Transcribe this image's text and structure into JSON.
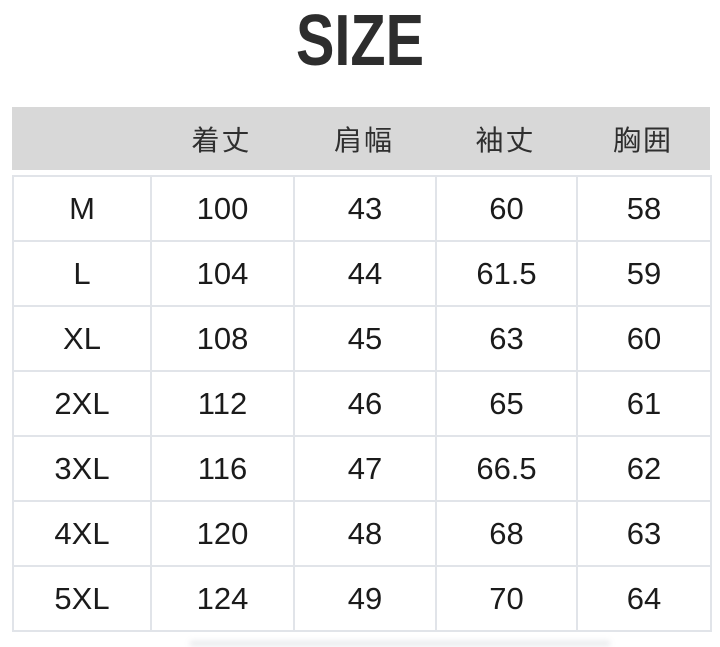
{
  "page": {
    "title": "SIZE"
  },
  "colors": {
    "header_background": "#d8d8d8",
    "cell_border": "#e1e4e9",
    "title_text": "#2d2d2d",
    "body_text": "#1b1b1b",
    "page_background": "#ffffff"
  },
  "chart_data": {
    "type": "table",
    "title": "SIZE",
    "row_header_label": "",
    "columns": [
      "着丈",
      "肩幅",
      "袖丈",
      "胸囲"
    ],
    "rows": [
      {
        "size": "M",
        "values": [
          100,
          43,
          60,
          58
        ]
      },
      {
        "size": "L",
        "values": [
          104,
          44,
          61.5,
          59
        ]
      },
      {
        "size": "XL",
        "values": [
          108,
          45,
          63,
          60
        ]
      },
      {
        "size": "2XL",
        "values": [
          112,
          46,
          65,
          61
        ]
      },
      {
        "size": "3XL",
        "values": [
          116,
          47,
          66.5,
          62
        ]
      },
      {
        "size": "4XL",
        "values": [
          120,
          48,
          68,
          63
        ]
      },
      {
        "size": "5XL",
        "values": [
          124,
          49,
          70,
          64
        ]
      }
    ],
    "layout": {
      "header_background": "#d8d8d8",
      "grid": true,
      "first_column_is_size_label": true
    }
  }
}
